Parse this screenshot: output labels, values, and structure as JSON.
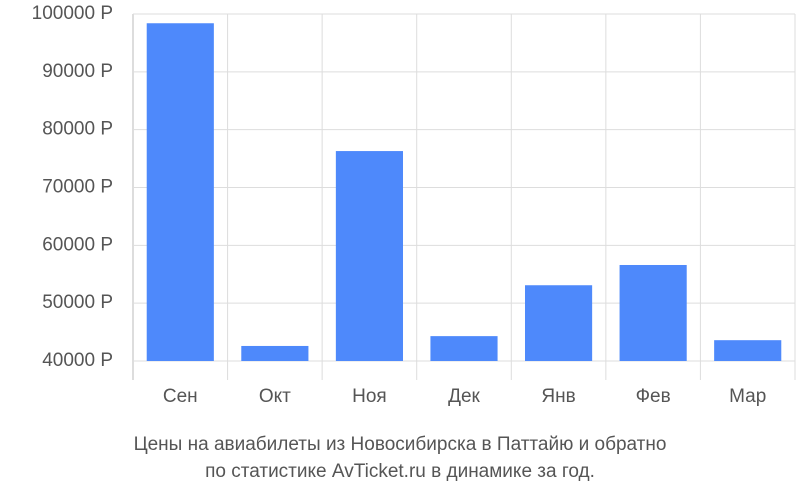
{
  "chart_data": {
    "type": "bar",
    "title": [
      "Цены на авиабилеты из Новосибирска в Паттайю и обратно",
      "по статистике AvTicket.ru в динамике за год."
    ],
    "categories": [
      "Сен",
      "Окт",
      "Ноя",
      "Дек",
      "Янв",
      "Фев",
      "Мар"
    ],
    "values": [
      98400,
      42600,
      76300,
      44300,
      53100,
      56600,
      43600
    ],
    "color": "#4e89fb",
    "ylim": [
      40000,
      100000
    ],
    "yticks": [
      {
        "value": 40000,
        "label": "40000 Р"
      },
      {
        "value": 50000,
        "label": "50000 Р"
      },
      {
        "value": 60000,
        "label": "60000 Р"
      },
      {
        "value": 70000,
        "label": "70000 Р"
      },
      {
        "value": 80000,
        "label": "80000 Р"
      },
      {
        "value": 90000,
        "label": "90000 Р"
      },
      {
        "value": 100000,
        "label": "100000 Р"
      }
    ],
    "grid": true
  }
}
